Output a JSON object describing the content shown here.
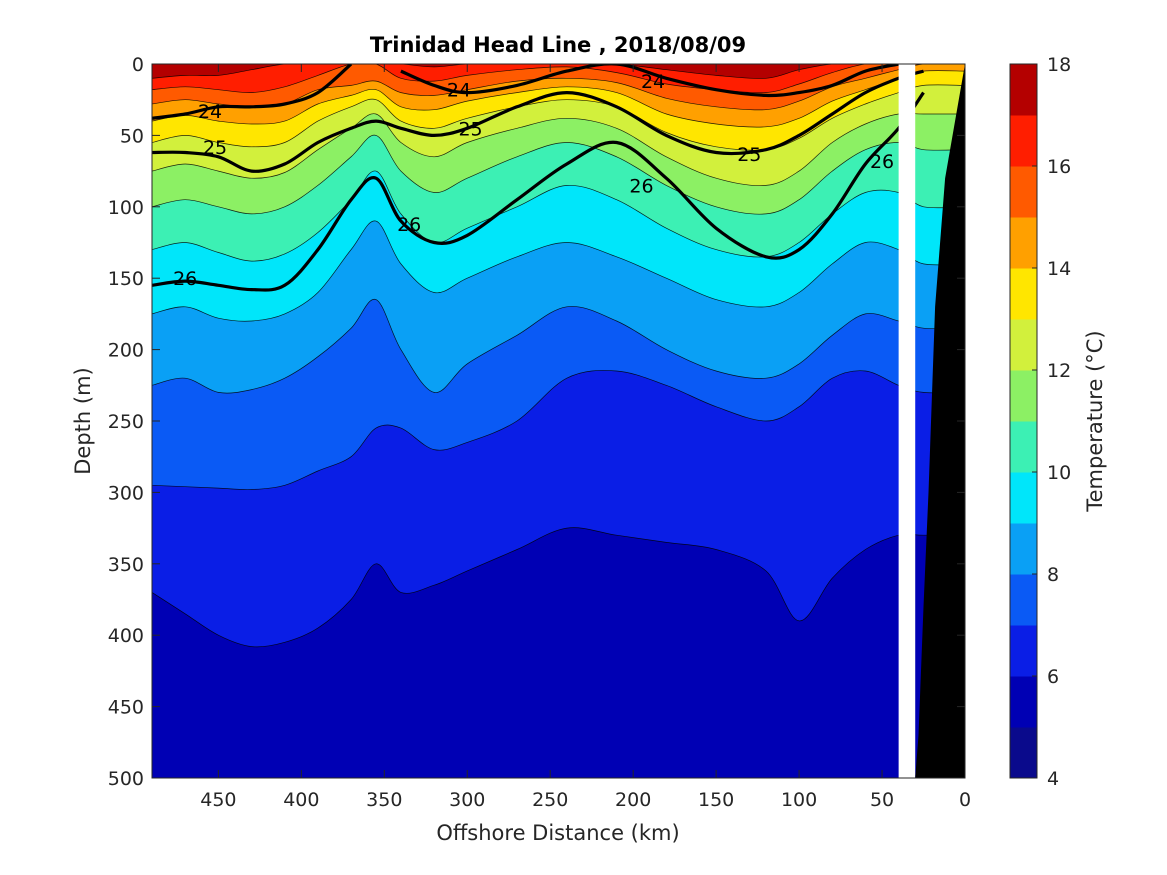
{
  "chart_data": {
    "type": "contour",
    "title": "Trinidad Head Line , 2018/08/09",
    "xlabel": "Offshore Distance (km)",
    "ylabel": "Depth (m)",
    "xlim": [
      490,
      0
    ],
    "ylim": [
      0,
      500
    ],
    "x_reversed": true,
    "y_reversed": true,
    "xticks": [
      "450",
      "400",
      "350",
      "300",
      "250",
      "200",
      "150",
      "100",
      "50",
      "0"
    ],
    "yticks": [
      "0",
      "50",
      "100",
      "150",
      "200",
      "250",
      "300",
      "350",
      "400",
      "450",
      "500"
    ],
    "colorbar": {
      "label": "Temperature (°C)",
      "ticks": [
        "4",
        "6",
        "8",
        "10",
        "12",
        "14",
        "16",
        "18"
      ],
      "range": [
        4,
        18
      ],
      "level_step": 1,
      "colors": [
        "#0a0a8c",
        "#0000b4",
        "#0a1ee6",
        "#0a5af5",
        "#0aa0f5",
        "#00e6fa",
        "#3cf0b4",
        "#8cf064",
        "#d2f03c",
        "#ffe600",
        "#ffa000",
        "#ff5a00",
        "#ff1e00",
        "#b40000"
      ]
    },
    "isotherm_depths": {
      "x": [
        490,
        470,
        450,
        430,
        410,
        390,
        370,
        355,
        340,
        320,
        300,
        270,
        240,
        210,
        180,
        150,
        120,
        100,
        80,
        60,
        40,
        25
      ],
      "levels": [
        {
          "value": 6,
          "depths": [
            370,
            385,
            400,
            408,
            405,
            395,
            375,
            350,
            370,
            365,
            355,
            340,
            325,
            330,
            335,
            340,
            355,
            390,
            360,
            340,
            330,
            330
          ]
        },
        {
          "value": 7,
          "depths": [
            295,
            296,
            297,
            298,
            295,
            285,
            275,
            255,
            255,
            270,
            265,
            250,
            220,
            215,
            225,
            240,
            250,
            240,
            220,
            215,
            225,
            230
          ]
        },
        {
          "value": 8,
          "depths": [
            225,
            220,
            230,
            228,
            220,
            205,
            185,
            165,
            200,
            230,
            210,
            190,
            170,
            180,
            200,
            215,
            220,
            210,
            190,
            175,
            180,
            185
          ]
        },
        {
          "value": 9,
          "depths": [
            175,
            170,
            178,
            180,
            175,
            160,
            130,
            110,
            140,
            160,
            150,
            135,
            125,
            135,
            150,
            165,
            170,
            160,
            140,
            125,
            130,
            140
          ]
        },
        {
          "value": 10,
          "depths": [
            130,
            125,
            132,
            138,
            133,
            118,
            95,
            75,
            105,
            125,
            115,
            100,
            85,
            95,
            115,
            130,
            135,
            125,
            105,
            90,
            90,
            100
          ]
        },
        {
          "value": 11,
          "depths": [
            100,
            95,
            100,
            105,
            100,
            85,
            65,
            50,
            75,
            90,
            80,
            65,
            55,
            65,
            85,
            100,
            105,
            95,
            75,
            60,
            55,
            60
          ]
        },
        {
          "value": 12,
          "depths": [
            75,
            70,
            75,
            80,
            76,
            60,
            45,
            35,
            55,
            65,
            55,
            45,
            38,
            45,
            65,
            80,
            85,
            75,
            55,
            42,
            35,
            35
          ]
        },
        {
          "value": 13,
          "depths": [
            55,
            50,
            55,
            58,
            55,
            40,
            30,
            25,
            40,
            45,
            38,
            30,
            25,
            30,
            48,
            58,
            60,
            52,
            38,
            28,
            20,
            15
          ]
        },
        {
          "value": 14,
          "depths": [
            40,
            36,
            40,
            42,
            40,
            28,
            22,
            18,
            30,
            32,
            26,
            20,
            16,
            20,
            35,
            42,
            44,
            38,
            26,
            18,
            10,
            5
          ]
        },
        {
          "value": 15,
          "depths": [
            28,
            25,
            28,
            30,
            28,
            18,
            15,
            12,
            20,
            22,
            18,
            12,
            10,
            13,
            24,
            30,
            32,
            26,
            16,
            10,
            4,
            0
          ]
        },
        {
          "value": 16,
          "depths": [
            18,
            16,
            18,
            20,
            16,
            8,
            0,
            0,
            10,
            12,
            8,
            4,
            2,
            6,
            14,
            18,
            20,
            14,
            6,
            0,
            0,
            0
          ]
        },
        {
          "value": 17,
          "depths": [
            10,
            8,
            8,
            4,
            0,
            0,
            0,
            0,
            0,
            2,
            0,
            0,
            0,
            0,
            4,
            8,
            10,
            4,
            0,
            0,
            0,
            0
          ]
        }
      ]
    },
    "density_contours": {
      "x": [
        490,
        470,
        450,
        430,
        410,
        390,
        370,
        355,
        340,
        320,
        300,
        270,
        240,
        210,
        180,
        150,
        120,
        100,
        80,
        60,
        40,
        25
      ],
      "lines": [
        {
          "value": "24",
          "depths": [
            38,
            35,
            30,
            30,
            28,
            20,
            0,
            null,
            5,
            15,
            20,
            15,
            5,
            0,
            10,
            18,
            22,
            20,
            15,
            5,
            0,
            null
          ]
        },
        {
          "value": "25",
          "depths": [
            62,
            62,
            65,
            75,
            70,
            55,
            45,
            40,
            45,
            50,
            45,
            30,
            20,
            30,
            50,
            62,
            60,
            50,
            35,
            20,
            10,
            5
          ]
        },
        {
          "value": "26",
          "depths": [
            155,
            152,
            155,
            158,
            155,
            130,
            95,
            80,
            110,
            125,
            120,
            95,
            70,
            55,
            80,
            115,
            135,
            130,
            105,
            70,
            45,
            20
          ]
        }
      ],
      "labels": [
        {
          "text": "24",
          "x": 455,
          "y": 33
        },
        {
          "text": "24",
          "x": 305,
          "y": 18
        },
        {
          "text": "24",
          "x": 188,
          "y": 12
        },
        {
          "text": "25",
          "x": 452,
          "y": 58
        },
        {
          "text": "25",
          "x": 298,
          "y": 45
        },
        {
          "text": "25",
          "x": 130,
          "y": 63
        },
        {
          "text": "26",
          "x": 470,
          "y": 150
        },
        {
          "text": "26",
          "x": 335,
          "y": 112
        },
        {
          "text": "26",
          "x": 195,
          "y": 85
        },
        {
          "text": "26",
          "x": 50,
          "y": 68
        }
      ]
    },
    "bathymetry": {
      "x": [
        0,
        12,
        18,
        22,
        25,
        28,
        30,
        40
      ],
      "depths": [
        0,
        80,
        170,
        300,
        380,
        470,
        500,
        500
      ]
    }
  }
}
